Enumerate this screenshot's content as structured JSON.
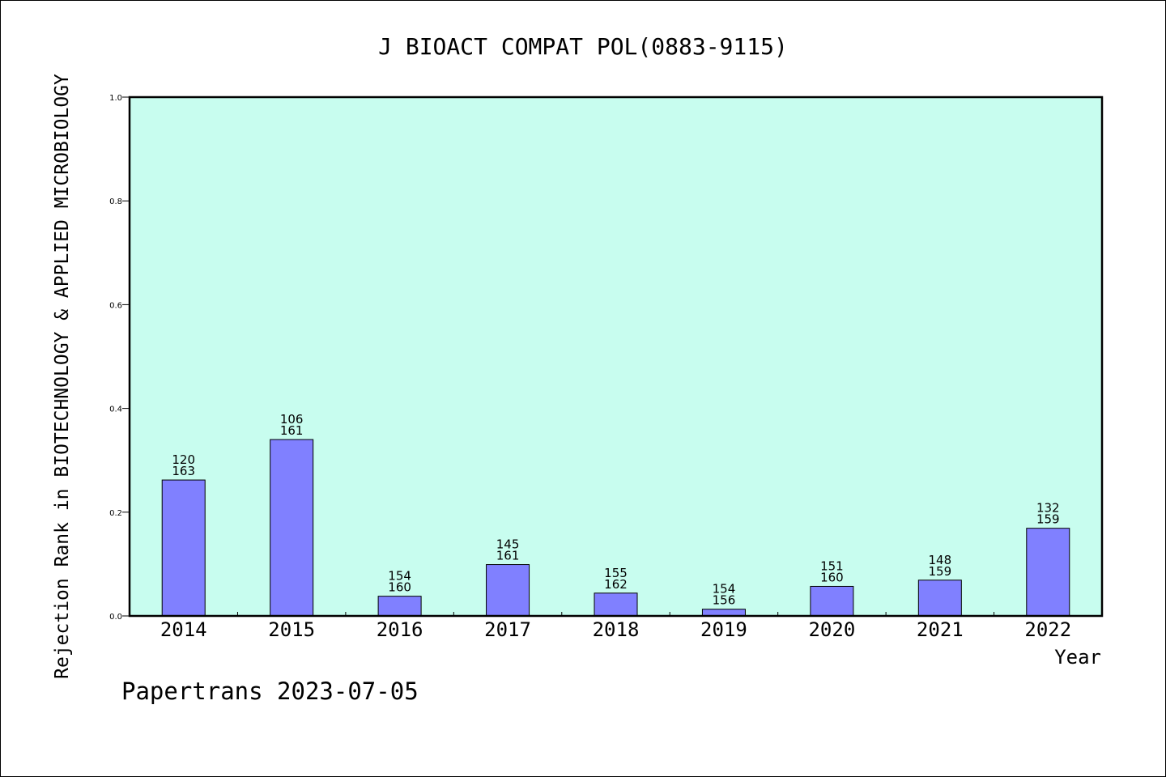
{
  "chart_data": {
    "type": "bar",
    "title": "J BIOACT COMPAT POL(0883-9115)",
    "xlabel": "Year",
    "ylabel": "Rejection Rank in BIOTECHNOLOGY & APPLIED MICROBIOLOGY",
    "ylim": [
      0,
      1.0
    ],
    "yticks": [
      "0.0",
      "0.2",
      "0.4",
      "0.6",
      "0.8",
      "1.0"
    ],
    "categories": [
      "2014",
      "2015",
      "2016",
      "2017",
      "2018",
      "2019",
      "2020",
      "2021",
      "2022"
    ],
    "values": [
      0.262,
      0.34,
      0.038,
      0.099,
      0.044,
      0.013,
      0.057,
      0.069,
      0.169
    ],
    "labels_top": [
      "120",
      "106",
      "154",
      "145",
      "155",
      "154",
      "151",
      "148",
      "132"
    ],
    "labels_bottom": [
      "163",
      "161",
      "160",
      "161",
      "162",
      "156",
      "160",
      "159",
      "159"
    ],
    "grid": false,
    "colors": {
      "plot_bg": "#c8fdef",
      "bar": "#8080ff",
      "bar_edge": "#000000"
    }
  },
  "footer": {
    "credit": "Papertrans 2023-07-05"
  }
}
